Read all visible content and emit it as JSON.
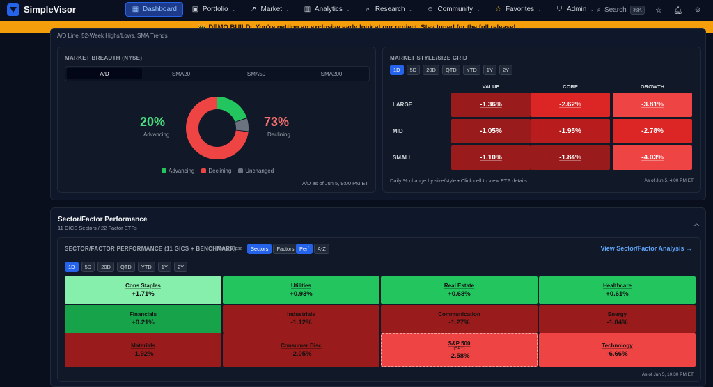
{
  "app": {
    "name": "SimpleVisor"
  },
  "nav": {
    "items": [
      {
        "label": "Dashboard",
        "icon": "dashboard-icon",
        "glyph": "▦",
        "active": true,
        "has_menu": false
      },
      {
        "label": "Portfolio",
        "icon": "briefcase-icon",
        "glyph": "▣",
        "active": false,
        "has_menu": true
      },
      {
        "label": "Market",
        "icon": "trend-icon",
        "glyph": "↗",
        "active": false,
        "has_menu": true
      },
      {
        "label": "Analytics",
        "icon": "bar-chart-icon",
        "glyph": "▥",
        "active": false,
        "has_menu": true
      },
      {
        "label": "Research",
        "icon": "search-icon",
        "glyph": "⌕",
        "active": false,
        "has_menu": true
      },
      {
        "label": "Community",
        "icon": "users-icon",
        "glyph": "☺",
        "active": false,
        "has_menu": true
      },
      {
        "label": "Favorites",
        "icon": "star-icon",
        "glyph": "☆",
        "active": false,
        "has_menu": true
      },
      {
        "label": "Admin",
        "icon": "shield-icon",
        "glyph": "⛉",
        "active": false,
        "has_menu": true
      }
    ],
    "search_label": "Search",
    "search_kbd": "⌘K"
  },
  "banner": {
    "emoji": "🚧",
    "bold": "DEMO BUILD:",
    "text": "You're getting an exclusive early look at our project. Stay tuned for the full release!"
  },
  "top_section": {
    "subtitle": "A/D Line, 52-Week Highs/Lows, SMA Trends"
  },
  "breadth": {
    "title": "MARKET BREADTH (NYSE)",
    "tabs": [
      "A/D",
      "SMA20",
      "SMA50",
      "SMA200"
    ],
    "active_tab": 0,
    "advancing_pct": "20%",
    "advancing_label": "Advancing",
    "declining_pct": "73%",
    "declining_label": "Declining",
    "donut": {
      "advancing": 20,
      "declining": 73,
      "unchanged": 7
    },
    "legend": [
      "Advancing",
      "Declining",
      "Unchanged"
    ],
    "colors": {
      "advancing": "#22c55e",
      "declining": "#ef4444",
      "unchanged": "#6b7280"
    },
    "footnote": "A/D as of Jun 5, 9:00 PM ET"
  },
  "style_grid": {
    "title": "MARKET STYLE/SIZE GRID",
    "periods": [
      "1D",
      "5D",
      "20D",
      "QTD",
      "YTD",
      "1Y",
      "2Y"
    ],
    "active_period": 0,
    "columns": [
      "VALUE",
      "CORE",
      "GROWTH"
    ],
    "rows": [
      {
        "label": "LARGE",
        "values": [
          "-1.36%",
          "-2.62%",
          "-3.81%"
        ]
      },
      {
        "label": "MID",
        "values": [
          "-1.05%",
          "-1.95%",
          "-2.78%"
        ]
      },
      {
        "label": "SMALL",
        "values": [
          "-1.10%",
          "-1.84%",
          "-4.03%"
        ]
      }
    ],
    "caption": "Daily % change by size/style • Click cell to view ETF details",
    "asof": "As of Jun 5, 4:00 PM ET"
  },
  "sector_section": {
    "title": "Sector/Factor Performance",
    "subtitle": "11 GICS Sectors / 22 Factor ETFs",
    "card_title": "SECTOR/FACTOR PERFORMANCE (11 GICS + BENCHMARK)",
    "daily_close": "Daily Close",
    "toggle_a": [
      "Sectors",
      "Factors"
    ],
    "toggle_b": [
      "Perf",
      "A-Z"
    ],
    "link": "View Sector/Factor Analysis →",
    "periods": [
      "1D",
      "5D",
      "20D",
      "QTD",
      "YTD",
      "1Y",
      "2Y"
    ],
    "active_period": 0,
    "tiles": [
      {
        "name": "Cons Staples",
        "value": "+1.71%",
        "ticker": "",
        "color": "#86efac"
      },
      {
        "name": "Utilities",
        "value": "+0.93%",
        "ticker": "",
        "color": "#22c55e"
      },
      {
        "name": "Real Estate",
        "value": "+0.68%",
        "ticker": "",
        "color": "#22c55e"
      },
      {
        "name": "Healthcare",
        "value": "+0.61%",
        "ticker": "",
        "color": "#22c55e"
      },
      {
        "name": "Financials",
        "value": "+0.21%",
        "ticker": "",
        "color": "#16a34a"
      },
      {
        "name": "Industrials",
        "value": "-1.12%",
        "ticker": "",
        "color": "#991b1b"
      },
      {
        "name": "Communication",
        "value": "-1.27%",
        "ticker": "",
        "color": "#991b1b"
      },
      {
        "name": "Energy",
        "value": "-1.84%",
        "ticker": "",
        "color": "#991b1b"
      },
      {
        "name": "Materials",
        "value": "-1.92%",
        "ticker": "",
        "color": "#991b1b"
      },
      {
        "name": "Consumer Disc",
        "value": "-2.05%",
        "ticker": "",
        "color": "#991b1b"
      },
      {
        "name": "S&P 500",
        "value": "-2.58%",
        "ticker": "(SPY)",
        "color": "#ef4444",
        "dashed": true
      },
      {
        "name": "Technology",
        "value": "-6.66%",
        "ticker": "",
        "color": "#ef4444"
      }
    ],
    "asof": "As of Jun 5, 10:30 PM ET"
  },
  "grid_colors": [
    [
      "#991b1b",
      "#dc2626",
      "#ef4444"
    ],
    [
      "#991b1b",
      "#b91c1c",
      "#dc2626"
    ],
    [
      "#991b1b",
      "#991b1b",
      "#ef4444"
    ]
  ]
}
